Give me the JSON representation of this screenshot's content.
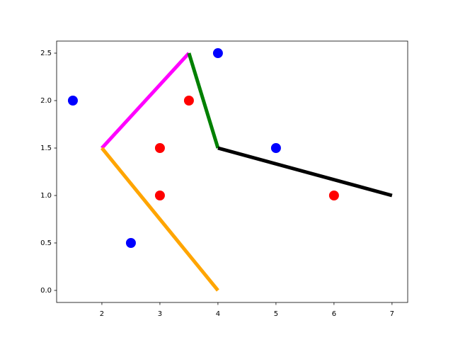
{
  "chart_data": {
    "type": "scatter",
    "xlim": [
      1.22,
      7.27
    ],
    "ylim": [
      -0.127,
      2.627
    ],
    "xticks": [
      2,
      3,
      4,
      5,
      6,
      7
    ],
    "yticks": [
      {
        "value": 0,
        "label": "0.0"
      },
      0.5,
      {
        "value": 1,
        "label": "1.0"
      },
      1.5,
      {
        "value": 2,
        "label": "2.0"
      },
      2.5
    ],
    "series": [
      {
        "type": "line",
        "color": "#ff00ff",
        "x": [
          2,
          3.5
        ],
        "values": [
          1.5,
          2.5
        ]
      },
      {
        "type": "line",
        "color": "#008000",
        "x": [
          3.5,
          4
        ],
        "values": [
          2.5,
          1.5
        ]
      },
      {
        "type": "line",
        "color": "#000000",
        "x": [
          4,
          7
        ],
        "values": [
          1.5,
          1
        ]
      },
      {
        "type": "line",
        "color": "#ffa500",
        "x": [
          2,
          4
        ],
        "values": [
          1.5,
          0
        ]
      },
      {
        "type": "scatter",
        "color": "#0000ff",
        "x": [
          1.5,
          2.5,
          4,
          5
        ],
        "values": [
          2,
          0.5,
          2.5,
          1.5
        ]
      },
      {
        "type": "scatter",
        "color": "#ff0000",
        "x": [
          3,
          3,
          3.5,
          6
        ],
        "values": [
          1.5,
          1,
          2,
          1
        ]
      }
    ]
  }
}
